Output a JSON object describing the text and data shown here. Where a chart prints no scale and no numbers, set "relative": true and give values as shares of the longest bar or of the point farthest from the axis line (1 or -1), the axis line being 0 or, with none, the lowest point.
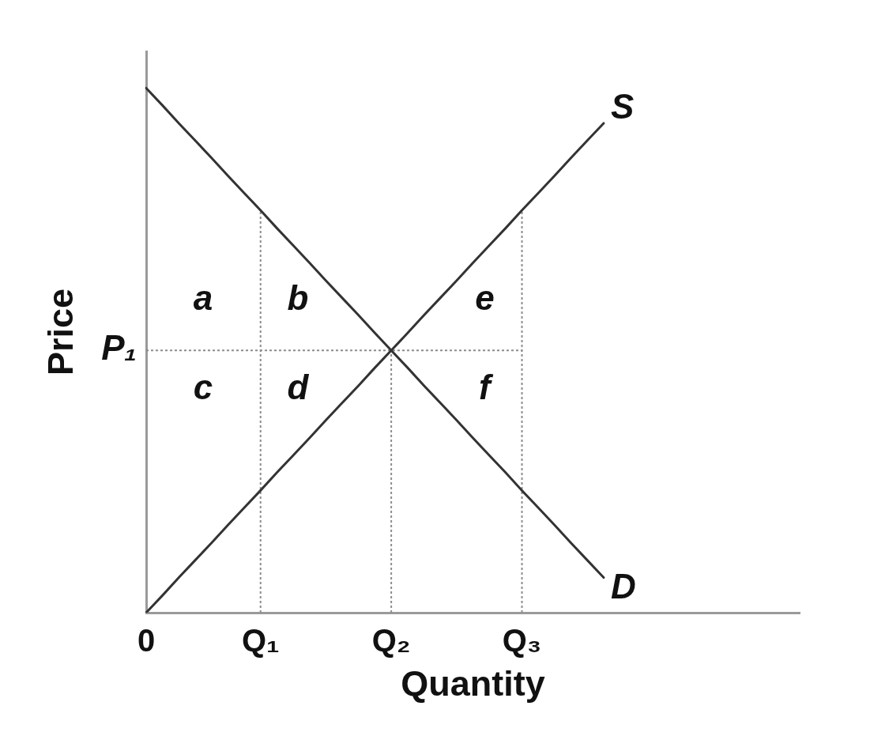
{
  "chart_data": {
    "type": "line",
    "relative": true,
    "xlabel": "Quantity",
    "ylabel": "Price",
    "categories": [
      "0",
      null,
      null,
      null,
      null,
      null,
      null,
      "Q₁",
      null,
      null,
      null,
      null,
      null,
      null,
      null,
      "Q₂",
      null,
      null,
      null,
      null,
      null,
      null,
      null,
      "Q₃",
      null,
      null,
      null,
      null,
      null,
      null,
      null,
      null,
      null,
      null,
      null,
      null,
      null,
      null,
      null,
      null,
      null
    ],
    "series": [
      {
        "name": "S",
        "color": "#333333",
        "values": [
          0,
          0.033,
          0.067,
          0.1,
          0.133,
          0.167,
          0.2,
          0.233,
          0.267,
          0.3,
          0.333,
          0.367,
          0.4,
          0.433,
          0.467,
          0.5,
          0.533,
          0.567,
          0.6,
          0.633,
          0.667,
          0.7,
          0.733,
          0.767,
          0.8,
          0.833,
          0.867,
          0.9,
          0.933,
          null,
          null,
          null,
          null,
          null,
          null,
          null,
          null,
          null,
          null,
          null,
          null
        ]
      },
      {
        "name": "D",
        "color": "#333333",
        "values": [
          1,
          0.967,
          0.933,
          0.9,
          0.867,
          0.833,
          0.8,
          0.767,
          0.733,
          0.7,
          0.667,
          0.633,
          0.6,
          0.567,
          0.533,
          0.5,
          0.467,
          0.433,
          0.4,
          0.367,
          0.333,
          0.3,
          0.267,
          0.233,
          0.2,
          0.167,
          0.133,
          0.1,
          0.067,
          null,
          null,
          null,
          null,
          null,
          null,
          null,
          null,
          null,
          null,
          null,
          null
        ]
      }
    ],
    "ref_lines": [
      {
        "axis": "x",
        "value": "Q₁",
        "color": "#8c8c8c",
        "line_style": "dotted"
      },
      {
        "axis": "x",
        "value": "Q₂",
        "color": "#8c8c8c",
        "line_style": "dotted"
      },
      {
        "axis": "x",
        "value": "Q₃",
        "color": "#8c8c8c",
        "line_style": "dotted"
      },
      {
        "axis": "y",
        "value": 0.5,
        "label": "P₁",
        "color": "#8c8c8c",
        "line_style": "dotted"
      }
    ],
    "annotations": [
      "a",
      "b",
      "e",
      "c",
      "d",
      "f"
    ]
  }
}
